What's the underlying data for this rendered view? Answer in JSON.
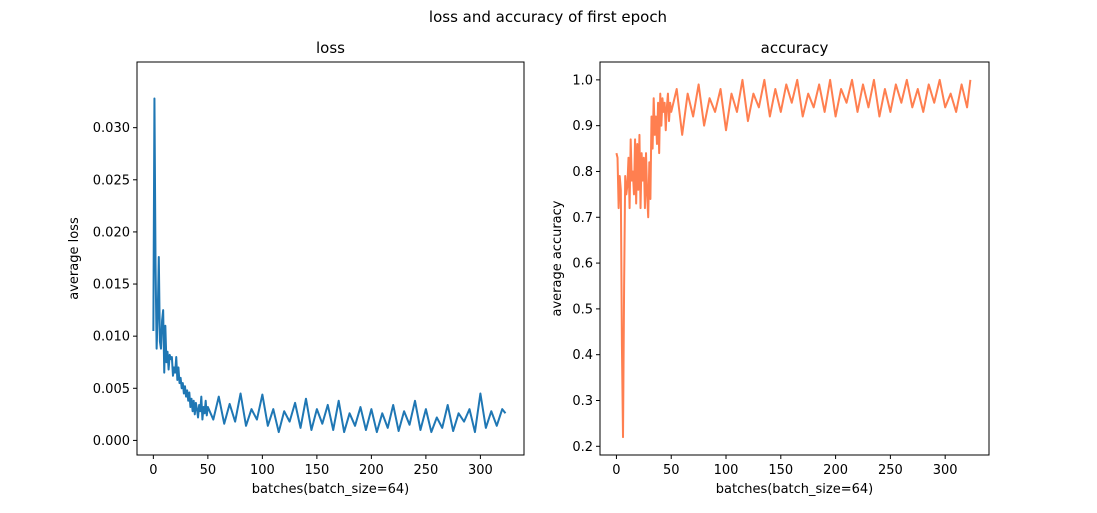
{
  "figure": {
    "suptitle": "loss and accuracy of first epoch"
  },
  "chart_data": [
    {
      "type": "line",
      "title": "loss",
      "xlabel": "batches(batch_size=64)",
      "ylabel": "average loss",
      "xlim": [
        -15,
        340
      ],
      "ylim": [
        -0.0014,
        0.0363
      ],
      "xticks": [
        0,
        50,
        100,
        150,
        200,
        250,
        300
      ],
      "yticks": [
        0.0,
        0.005,
        0.01,
        0.015,
        0.02,
        0.025,
        0.03
      ],
      "ytick_labels": [
        "0.000",
        "0.005",
        "0.010",
        "0.015",
        "0.020",
        "0.025",
        "0.030"
      ],
      "grid": false,
      "series": [
        {
          "name": "loss",
          "color": "#1f77b4",
          "x": [
            0,
            1,
            2,
            3,
            4,
            5,
            6,
            7,
            8,
            9,
            10,
            11,
            12,
            13,
            14,
            15,
            16,
            17,
            18,
            19,
            20,
            21,
            22,
            23,
            24,
            25,
            26,
            27,
            28,
            29,
            30,
            31,
            32,
            33,
            34,
            35,
            36,
            37,
            38,
            39,
            40,
            41,
            42,
            43,
            44,
            45,
            46,
            47,
            48,
            49,
            50,
            55,
            60,
            65,
            70,
            75,
            80,
            85,
            90,
            95,
            100,
            105,
            110,
            115,
            120,
            125,
            130,
            135,
            140,
            145,
            150,
            155,
            160,
            165,
            170,
            175,
            180,
            185,
            190,
            195,
            200,
            205,
            210,
            215,
            220,
            225,
            230,
            235,
            240,
            245,
            250,
            255,
            260,
            265,
            270,
            275,
            280,
            285,
            290,
            295,
            300,
            305,
            310,
            315,
            320,
            323
          ],
          "values": [
            0.0105,
            0.0328,
            0.017,
            0.0088,
            0.012,
            0.0176,
            0.0095,
            0.0088,
            0.0115,
            0.0125,
            0.0065,
            0.011,
            0.0075,
            0.0085,
            0.0068,
            0.0082,
            0.0078,
            0.008,
            0.0062,
            0.007,
            0.0065,
            0.008,
            0.0058,
            0.007,
            0.0055,
            0.006,
            0.005,
            0.0055,
            0.0045,
            0.0052,
            0.0042,
            0.0048,
            0.0038,
            0.0046,
            0.0032,
            0.004,
            0.0028,
            0.0038,
            0.0025,
            0.0036,
            0.003,
            0.0022,
            0.0034,
            0.0028,
            0.0042,
            0.002,
            0.0032,
            0.0026,
            0.0038,
            0.0024,
            0.0032,
            0.002,
            0.0042,
            0.0016,
            0.0035,
            0.0018,
            0.0045,
            0.0014,
            0.003,
            0.002,
            0.0044,
            0.0014,
            0.003,
            0.0008,
            0.0028,
            0.0018,
            0.0036,
            0.0012,
            0.004,
            0.001,
            0.003,
            0.0016,
            0.0034,
            0.001,
            0.0038,
            0.0008,
            0.0026,
            0.0014,
            0.0032,
            0.001,
            0.003,
            0.0008,
            0.0026,
            0.0012,
            0.0034,
            0.0009,
            0.0028,
            0.0015,
            0.0038,
            0.001,
            0.003,
            0.0008,
            0.0022,
            0.0012,
            0.0034,
            0.0009,
            0.0026,
            0.0018,
            0.003,
            0.0008,
            0.0045,
            0.0012,
            0.0028,
            0.0014,
            0.003,
            0.0026
          ]
        }
      ]
    },
    {
      "type": "line",
      "title": "accuracy",
      "xlabel": "batches(batch_size=64)",
      "ylabel": "average accuracy",
      "xlim": [
        -15,
        340
      ],
      "ylim": [
        0.181,
        1.039
      ],
      "xticks": [
        0,
        50,
        100,
        150,
        200,
        250,
        300
      ],
      "yticks": [
        0.2,
        0.3,
        0.4,
        0.5,
        0.6,
        0.7,
        0.8,
        0.9,
        1.0
      ],
      "ytick_labels": [
        "0.2",
        "0.3",
        "0.4",
        "0.5",
        "0.6",
        "0.7",
        "0.8",
        "0.9",
        "1.0"
      ],
      "grid": false,
      "series": [
        {
          "name": "accuracy",
          "color": "#ff7f50",
          "x": [
            0,
            1,
            2,
            3,
            4,
            5,
            6,
            7,
            8,
            9,
            10,
            11,
            12,
            13,
            14,
            15,
            16,
            17,
            18,
            19,
            20,
            21,
            22,
            23,
            24,
            25,
            26,
            27,
            28,
            29,
            30,
            31,
            32,
            33,
            34,
            35,
            36,
            37,
            38,
            39,
            40,
            41,
            42,
            43,
            44,
            45,
            46,
            47,
            48,
            49,
            50,
            55,
            60,
            65,
            70,
            75,
            80,
            85,
            90,
            95,
            100,
            105,
            110,
            115,
            120,
            125,
            130,
            135,
            140,
            145,
            150,
            155,
            160,
            165,
            170,
            175,
            180,
            185,
            190,
            195,
            200,
            205,
            210,
            215,
            220,
            225,
            230,
            235,
            240,
            245,
            250,
            255,
            260,
            265,
            270,
            275,
            280,
            285,
            290,
            295,
            300,
            305,
            310,
            315,
            320,
            323
          ],
          "values": [
            0.84,
            0.83,
            0.72,
            0.79,
            0.76,
            0.42,
            0.22,
            0.55,
            0.79,
            0.75,
            0.77,
            0.83,
            0.72,
            0.87,
            0.78,
            0.8,
            0.75,
            0.87,
            0.73,
            0.86,
            0.76,
            0.88,
            0.72,
            0.84,
            0.78,
            0.83,
            0.72,
            0.84,
            0.75,
            0.7,
            0.82,
            0.74,
            0.92,
            0.85,
            0.96,
            0.88,
            0.92,
            0.86,
            0.95,
            0.84,
            0.97,
            0.9,
            0.96,
            0.93,
            0.95,
            0.89,
            0.94,
            0.97,
            0.91,
            0.95,
            0.93,
            0.98,
            0.88,
            0.97,
            0.92,
            0.99,
            0.9,
            0.96,
            0.93,
            0.98,
            0.89,
            0.97,
            0.93,
            1.0,
            0.91,
            0.97,
            0.94,
            1.0,
            0.92,
            0.98,
            0.93,
            0.99,
            0.95,
            1.0,
            0.92,
            0.97,
            0.94,
            0.99,
            0.93,
            1.0,
            0.92,
            0.98,
            0.95,
            1.0,
            0.93,
            0.99,
            0.94,
            1.0,
            0.92,
            0.98,
            0.93,
            0.99,
            0.95,
            1.0,
            0.94,
            0.98,
            0.93,
            0.99,
            0.95,
            1.0,
            0.94,
            0.97,
            0.93,
            0.99,
            0.94,
            1.0
          ]
        }
      ]
    }
  ]
}
